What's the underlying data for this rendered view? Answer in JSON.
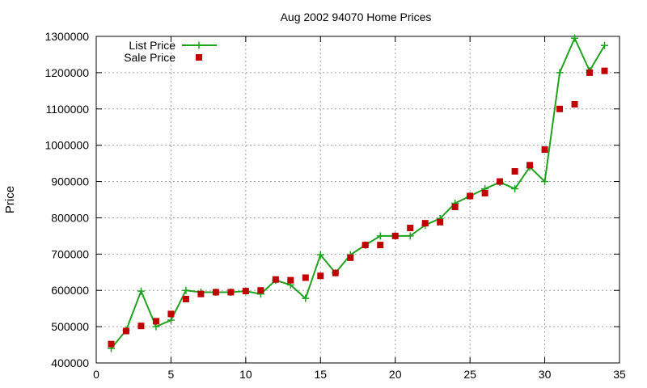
{
  "chart_data": {
    "type": "line",
    "title": "Aug 2002 94070 Home Prices",
    "xlabel": "",
    "ylabel": "Price",
    "xlim": [
      0,
      35
    ],
    "ylim": [
      400000,
      1300000
    ],
    "x_ticks": [
      0,
      5,
      10,
      15,
      20,
      25,
      30,
      35
    ],
    "y_ticks": [
      400000,
      500000,
      600000,
      700000,
      800000,
      900000,
      1000000,
      1100000,
      1200000,
      1300000
    ],
    "grid": true,
    "legend_position": "top-left",
    "series": [
      {
        "name": "List Price",
        "style": "lines+points",
        "marker": "plus",
        "color": "#1fa31f",
        "x": [
          1,
          2,
          3,
          4,
          5,
          6,
          7,
          8,
          9,
          10,
          11,
          12,
          13,
          14,
          15,
          16,
          17,
          18,
          19,
          20,
          21,
          22,
          23,
          24,
          25,
          26,
          27,
          28,
          29,
          30,
          31,
          32,
          33,
          34
        ],
        "values": [
          440000,
          490000,
          598000,
          500000,
          518000,
          600000,
          595000,
          595000,
          595000,
          598000,
          590000,
          628000,
          615000,
          578000,
          698000,
          648000,
          698000,
          725000,
          750000,
          750000,
          750000,
          780000,
          798000,
          840000,
          860000,
          880000,
          898000,
          880000,
          940000,
          900000,
          1200000,
          1295000,
          1205000,
          1275000
        ]
      },
      {
        "name": "Sale Price",
        "style": "points",
        "marker": "square",
        "color": "#c00000",
        "x": [
          1,
          2,
          3,
          4,
          5,
          6,
          7,
          8,
          9,
          10,
          11,
          12,
          13,
          14,
          15,
          16,
          17,
          18,
          19,
          20,
          21,
          22,
          23,
          24,
          25,
          26,
          27,
          28,
          29,
          30,
          31,
          32,
          33,
          34
        ],
        "values": [
          452000,
          488000,
          502000,
          515000,
          535000,
          576000,
          590000,
          595000,
          595000,
          598000,
          600000,
          630000,
          628000,
          635000,
          640000,
          648000,
          690000,
          725000,
          725000,
          750000,
          772000,
          785000,
          788000,
          830000,
          860000,
          868000,
          900000,
          928000,
          945000,
          988000,
          1100000,
          1113000,
          1200000,
          1205000
        ]
      }
    ]
  }
}
